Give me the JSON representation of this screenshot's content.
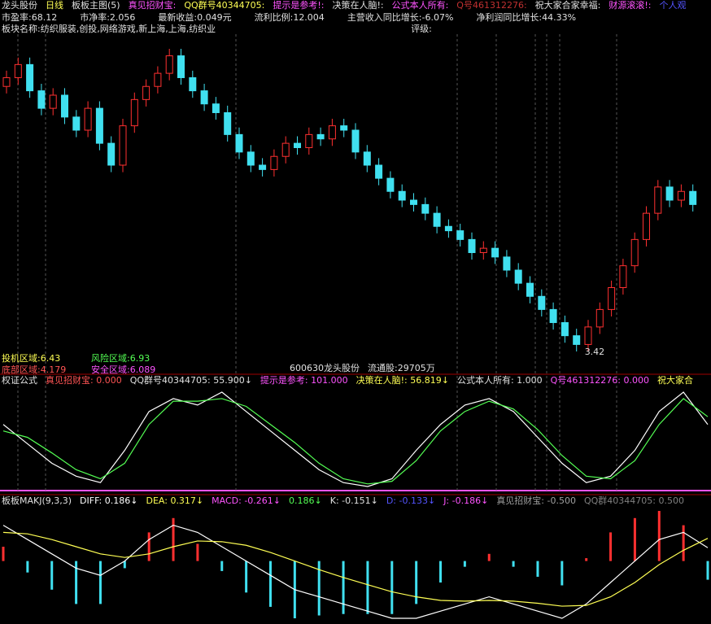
{
  "header": {
    "row1": [
      {
        "text": "龙头股份",
        "color": "#e0e0e0"
      },
      {
        "text": "日线",
        "color": "#ffff54"
      },
      {
        "text": "板板主图(5)",
        "color": "#e0e0e0"
      },
      {
        "text": "真见招财宝:",
        "color": "#ff54ff"
      },
      {
        "text": "QQ群号40344705:",
        "color": "#ffff54"
      },
      {
        "text": "提示是参考!:",
        "color": "#ff54ff"
      },
      {
        "text": "决策在人脑!:",
        "color": "#e0e0e0"
      },
      {
        "text": "公式本人所有:",
        "color": "#ff54ff"
      },
      {
        "text": "Q号461312276:",
        "color": "#c03030"
      },
      {
        "text": "祝大家合家幸福:",
        "color": "#e0e0e0"
      },
      {
        "text": "财源滚滚!:",
        "color": "#ff54ff"
      },
      {
        "text": "个人观",
        "color": "#5454ff"
      }
    ],
    "row2": [
      {
        "text": "市盈率:68.12",
        "color": "#e0e0e0"
      },
      {
        "text": "市净率:2.056",
        "color": "#e0e0e0"
      },
      {
        "text": "最新收益:0.049元",
        "color": "#e0e0e0"
      },
      {
        "text": "流利比例:12.004",
        "color": "#e0e0e0"
      },
      {
        "text": "主营收入同比增长:-6.07%",
        "color": "#e0e0e0"
      },
      {
        "text": "净利润同比增长:44.33%",
        "color": "#e0e0e0"
      }
    ],
    "row3": [
      {
        "text": "板块名称:纺织服装,创投,网络游戏,新上海,上海,纺织业",
        "color": "#e0e0e0"
      },
      {
        "text": "评级:",
        "color": "#e0e0e0"
      }
    ]
  },
  "main_panel": {
    "zones": [
      {
        "text": "投机区域:6.43",
        "color": "#ffff54"
      },
      {
        "text": "风险区域:6.93",
        "color": "#54ff54"
      },
      {
        "text": "底部区域:4.179",
        "color": "#ff5454"
      },
      {
        "text": "安全区域:6.089",
        "color": "#ff54ff"
      }
    ],
    "stock_code": "600630龙头股份",
    "float_shares": "流通股:29705万",
    "low_label": "3.42",
    "up_color": "#ff3030",
    "down_color": "#40e0f0",
    "candles": [
      [
        6.45,
        6.55,
        6.63,
        6.37
      ],
      [
        6.55,
        6.7,
        6.78,
        6.47
      ],
      [
        6.7,
        6.4,
        6.78,
        6.32
      ],
      [
        6.4,
        6.2,
        6.48,
        6.12
      ],
      [
        6.2,
        6.35,
        6.43,
        6.12
      ],
      [
        6.35,
        6.1,
        6.43,
        6.02
      ],
      [
        6.1,
        5.95,
        6.18,
        5.87
      ],
      [
        5.95,
        6.2,
        6.28,
        5.87
      ],
      [
        6.2,
        5.8,
        6.28,
        5.72
      ],
      [
        5.8,
        5.55,
        5.88,
        5.47
      ],
      [
        5.55,
        6.0,
        6.08,
        5.47
      ],
      [
        6.0,
        6.3,
        6.38,
        5.92
      ],
      [
        6.3,
        6.45,
        6.53,
        6.22
      ],
      [
        6.45,
        6.6,
        6.68,
        6.37
      ],
      [
        6.6,
        6.8,
        6.88,
        6.52
      ],
      [
        6.8,
        6.55,
        6.88,
        6.47
      ],
      [
        6.55,
        6.4,
        6.63,
        6.32
      ],
      [
        6.4,
        6.25,
        6.48,
        6.17
      ],
      [
        6.25,
        6.15,
        6.33,
        6.07
      ],
      [
        6.15,
        5.9,
        6.23,
        5.82
      ],
      [
        5.9,
        5.7,
        5.98,
        5.62
      ],
      [
        5.7,
        5.55,
        5.78,
        5.47
      ],
      [
        5.55,
        5.5,
        5.63,
        5.42
      ],
      [
        5.5,
        5.65,
        5.73,
        5.42
      ],
      [
        5.65,
        5.8,
        5.88,
        5.57
      ],
      [
        5.8,
        5.75,
        5.88,
        5.67
      ],
      [
        5.75,
        5.9,
        5.98,
        5.67
      ],
      [
        5.9,
        5.85,
        5.98,
        5.77
      ],
      [
        5.85,
        6.0,
        6.08,
        5.77
      ],
      [
        6.0,
        5.95,
        6.08,
        5.87
      ],
      [
        5.95,
        5.7,
        6.03,
        5.62
      ],
      [
        5.7,
        5.55,
        5.78,
        5.47
      ],
      [
        5.55,
        5.4,
        5.63,
        5.32
      ],
      [
        5.4,
        5.25,
        5.48,
        5.17
      ],
      [
        5.25,
        5.15,
        5.33,
        5.07
      ],
      [
        5.15,
        5.1,
        5.23,
        5.02
      ],
      [
        5.1,
        5.0,
        5.18,
        4.92
      ],
      [
        5.0,
        4.85,
        5.08,
        4.77
      ],
      [
        4.85,
        4.8,
        4.93,
        4.72
      ],
      [
        4.8,
        4.7,
        4.88,
        4.62
      ],
      [
        4.7,
        4.55,
        4.78,
        4.47
      ],
      [
        4.55,
        4.6,
        4.68,
        4.47
      ],
      [
        4.6,
        4.5,
        4.68,
        4.42
      ],
      [
        4.5,
        4.35,
        4.58,
        4.27
      ],
      [
        4.35,
        4.2,
        4.43,
        4.12
      ],
      [
        4.2,
        4.05,
        4.28,
        3.97
      ],
      [
        4.05,
        3.9,
        4.13,
        3.82
      ],
      [
        3.9,
        3.75,
        3.98,
        3.67
      ],
      [
        3.75,
        3.6,
        3.83,
        3.52
      ],
      [
        3.6,
        3.5,
        3.68,
        3.42
      ],
      [
        3.5,
        3.7,
        3.78,
        3.42
      ],
      [
        3.7,
        3.9,
        3.98,
        3.62
      ],
      [
        3.9,
        4.15,
        4.23,
        3.82
      ],
      [
        4.15,
        4.4,
        4.48,
        4.07
      ],
      [
        4.4,
        4.7,
        4.78,
        4.32
      ],
      [
        4.7,
        5.0,
        5.08,
        4.62
      ],
      [
        5.0,
        5.3,
        5.38,
        4.92
      ],
      [
        5.3,
        5.15,
        5.38,
        5.07
      ],
      [
        5.15,
        5.25,
        5.33,
        5.07
      ],
      [
        5.25,
        5.1,
        5.33,
        5.02
      ]
    ]
  },
  "panel2": {
    "title": [
      {
        "text": "权证公式",
        "color": "#e0e0e0"
      },
      {
        "text": "真见招财宝: 0.000",
        "color": "#ff5454"
      },
      {
        "text": "QQ群号40344705: 55.900↓",
        "color": "#e0e0e0"
      },
      {
        "text": "提示是参考: 101.000",
        "color": "#ff54ff"
      },
      {
        "text": "决策在人脑!: 56.819↓",
        "color": "#ffff54"
      },
      {
        "text": "公式本人所有: 1.000",
        "color": "#e0e0e0"
      },
      {
        "text": "Q号461312276: 0.000",
        "color": "#ff54ff"
      },
      {
        "text": "祝大家合",
        "color": "#ffff54"
      }
    ],
    "lines": [
      {
        "color": "#ffffff",
        "values": [
          60,
          45,
          30,
          20,
          15,
          40,
          70,
          80,
          75,
          85,
          70,
          55,
          40,
          25,
          15,
          12,
          18,
          40,
          60,
          75,
          80,
          70,
          50,
          30,
          15,
          20,
          40,
          70,
          85,
          60
        ]
      },
      {
        "color": "#54ff54",
        "values": [
          55,
          50,
          38,
          25,
          18,
          30,
          60,
          78,
          78,
          80,
          74,
          60,
          46,
          30,
          18,
          14,
          16,
          32,
          55,
          70,
          78,
          72,
          56,
          36,
          20,
          18,
          32,
          60,
          80,
          66
        ]
      }
    ]
  },
  "panel3": {
    "title": [
      {
        "text": "板板MAKJ(9,3,3)",
        "color": "#e0e0e0"
      },
      {
        "text": "DIFF: 0.186↓",
        "color": "#ffffff"
      },
      {
        "text": "DEA: 0.317↓",
        "color": "#ffff54"
      },
      {
        "text": "MACD: -0.261↓",
        "color": "#ff54ff"
      },
      {
        "text": "0.186↓",
        "color": "#54ff54"
      },
      {
        "text": "K: -0.151↓",
        "color": "#e0e0e0"
      },
      {
        "text": "D: -0.133↓",
        "color": "#5454ff"
      },
      {
        "text": "J: -0.186↓",
        "color": "#ff54ff"
      },
      {
        "text": "真见招财宝: -0.500",
        "color": "#a0a0a0"
      },
      {
        "text": "QQ群40344705: 0.500",
        "color": "#808080"
      }
    ],
    "lines": [
      {
        "color": "#ffffff",
        "values": [
          0.5,
          0.3,
          0.1,
          -0.1,
          -0.2,
          0.0,
          0.3,
          0.5,
          0.4,
          0.2,
          0.0,
          -0.2,
          -0.4,
          -0.5,
          -0.6,
          -0.7,
          -0.8,
          -0.8,
          -0.7,
          -0.6,
          -0.5,
          -0.6,
          -0.7,
          -0.8,
          -0.6,
          -0.3,
          0.0,
          0.3,
          0.4,
          0.186
        ]
      },
      {
        "color": "#ffff54",
        "values": [
          0.4,
          0.38,
          0.3,
          0.2,
          0.1,
          0.05,
          0.1,
          0.2,
          0.28,
          0.27,
          0.22,
          0.12,
          0.0,
          -0.12,
          -0.23,
          -0.33,
          -0.43,
          -0.5,
          -0.55,
          -0.56,
          -0.55,
          -0.56,
          -0.59,
          -0.63,
          -0.62,
          -0.5,
          -0.3,
          -0.05,
          0.15,
          0.317
        ]
      }
    ],
    "macd": [
      0.2,
      -0.16,
      -0.4,
      -0.6,
      -0.6,
      -0.1,
      0.4,
      0.6,
      0.24,
      -0.14,
      -0.44,
      -0.64,
      -0.8,
      -0.76,
      -0.74,
      -0.74,
      -0.74,
      -0.6,
      -0.3,
      -0.08,
      0.1,
      -0.08,
      -0.22,
      -0.34,
      0.04,
      0.4,
      0.6,
      0.7,
      0.5,
      -0.261
    ]
  }
}
